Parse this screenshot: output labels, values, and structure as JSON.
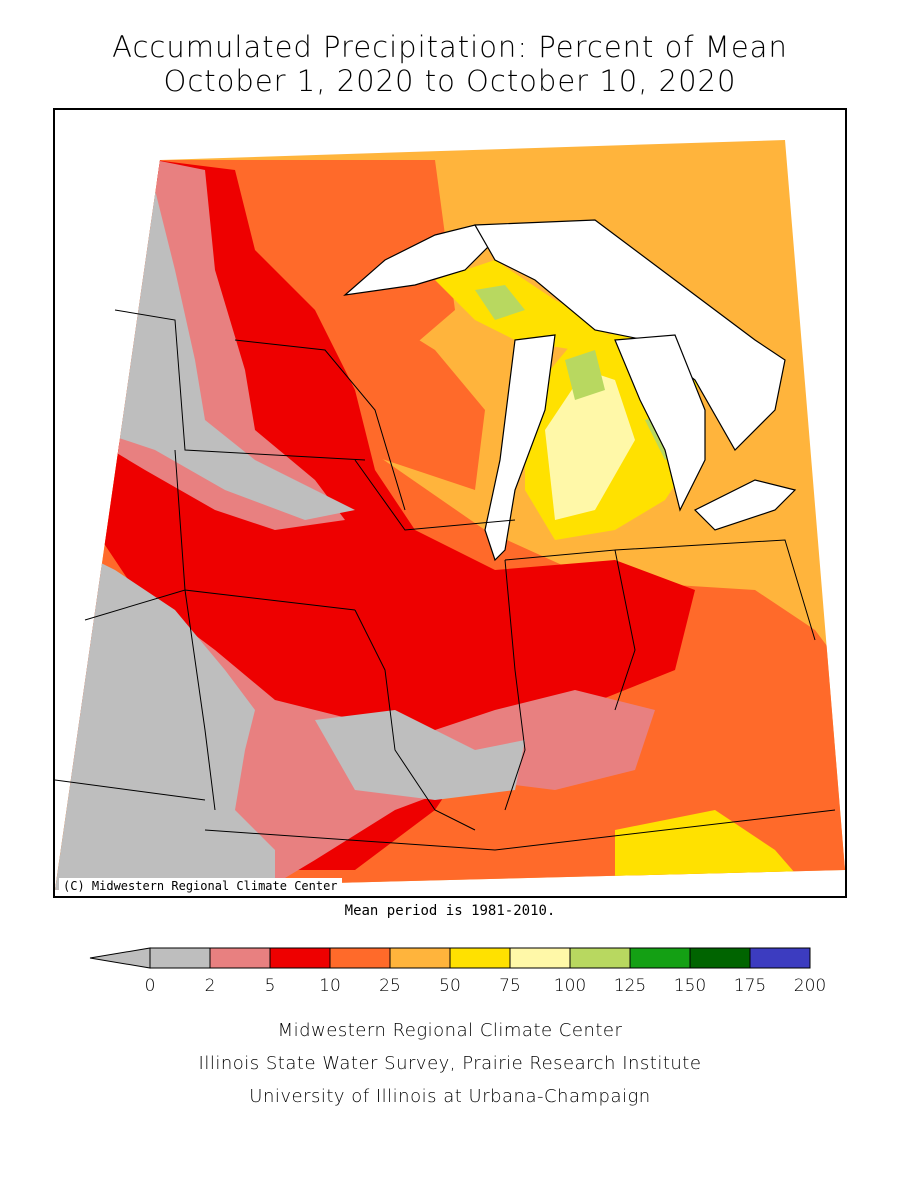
{
  "title_line1": "Accumulated Precipitation: Percent of Mean",
  "title_line2": "October 1, 2020 to October 10, 2020",
  "copyright": "(C) Midwestern Regional Climate Center",
  "mean_note": "Mean period is 1981-2010.",
  "legend": {
    "ticks": [
      "0",
      "2",
      "5",
      "10",
      "25",
      "50",
      "75",
      "100",
      "125",
      "150",
      "175",
      "200"
    ],
    "colors": [
      "#bebebe",
      "#e88080",
      "#ee0000",
      "#ff6a2a",
      "#ffb43c",
      "#ffe100",
      "#fff8a8",
      "#b8d860",
      "#14a014",
      "#006400",
      "#3c3cc0"
    ]
  },
  "credits": [
    "Midwestern Regional Climate Center",
    "Illinois State Water Survey, Prairie Research Institute",
    "University of Illinois at Urbana-Champaign"
  ]
}
